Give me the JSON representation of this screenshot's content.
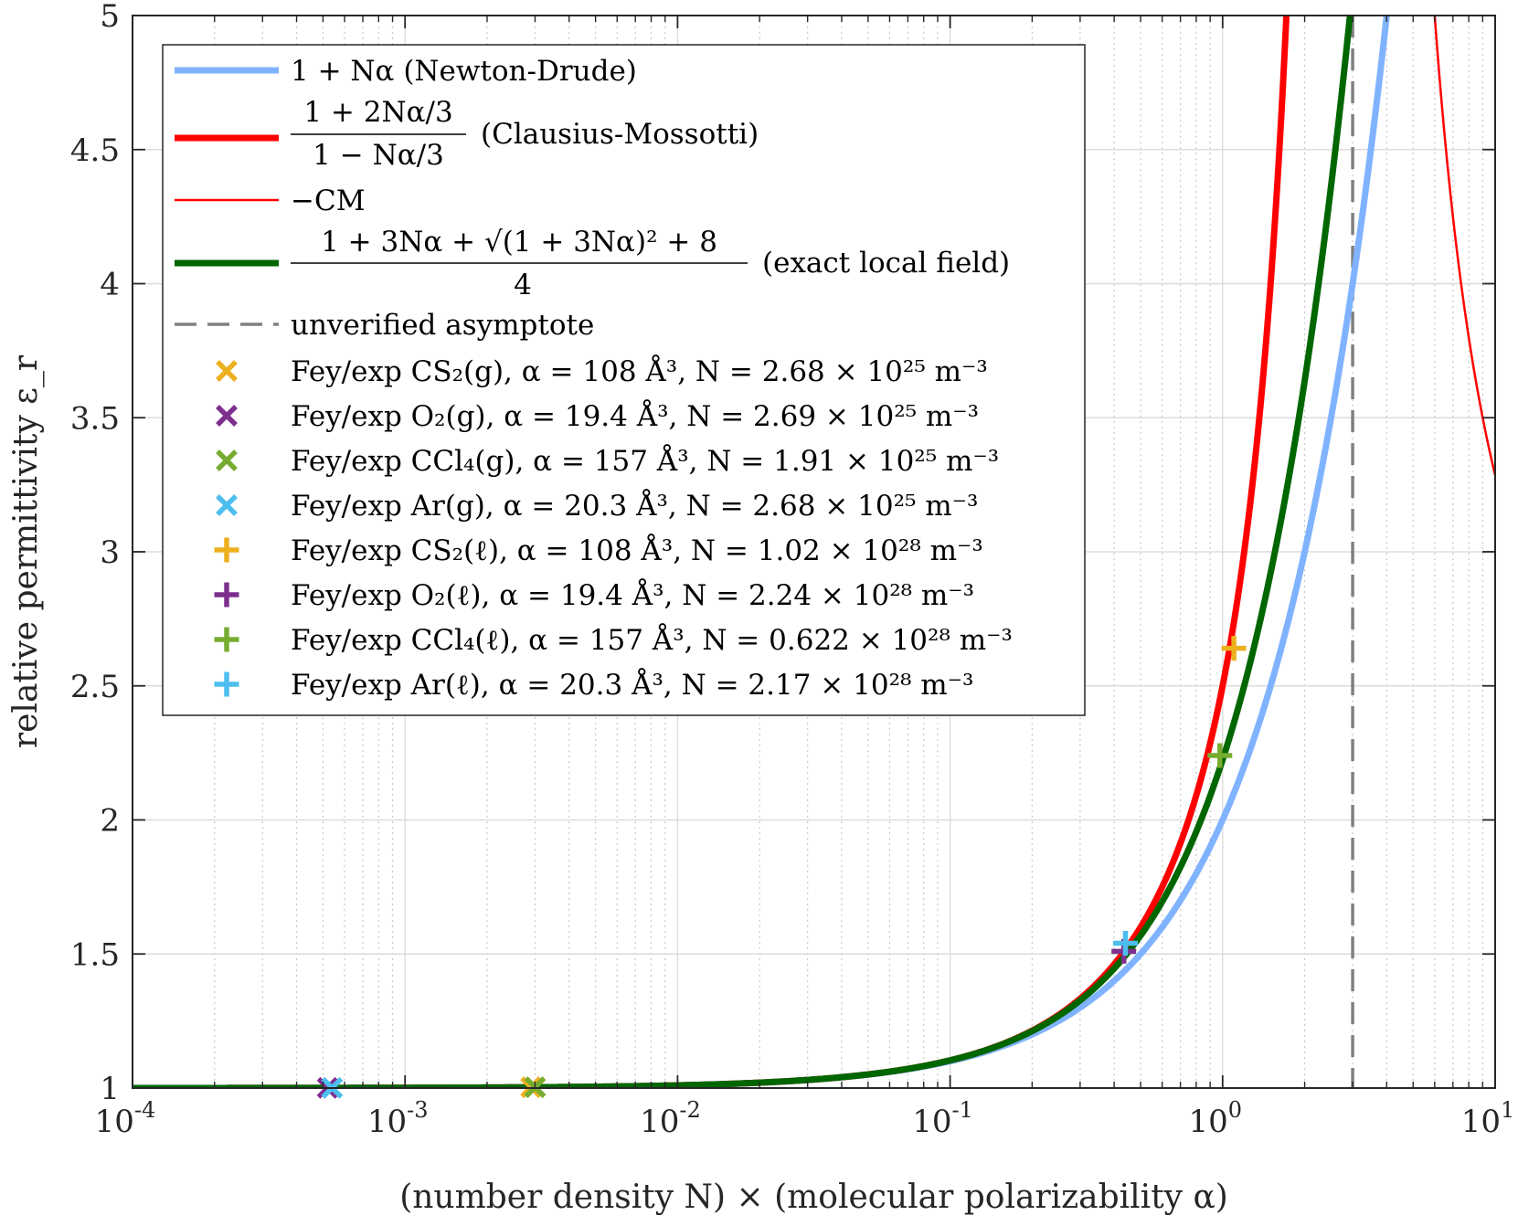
{
  "chart_data": {
    "type": "line",
    "title": "",
    "xlabel": "(number density N) × (molecular polarizability α)",
    "ylabel": "relative permittivity ε_r",
    "xscale": "log",
    "xlim": [
      0.0001,
      10
    ],
    "ylim": [
      1,
      5
    ],
    "grid": true,
    "legend_position": "top-left",
    "x_tick_labels": [
      "10^-4",
      "10^-3",
      "10^-2",
      "10^-1",
      "10^0",
      "10^1"
    ],
    "y_tick_labels": [
      "1",
      "1.5",
      "2",
      "2.5",
      "3",
      "3.5",
      "4",
      "4.5",
      "5"
    ],
    "series": [
      {
        "key": "nd",
        "name": "1 + Nα (Newton-Drude)",
        "color": "#80B3FF",
        "width": 7,
        "style": "solid"
      },
      {
        "key": "cm",
        "name": "(1 + 2Nα/3) / (1 − Nα/3) (Clausius-Mossotti)",
        "color": "#FF0000",
        "width": 7,
        "style": "solid"
      },
      {
        "key": "negcm",
        "name": "−CM",
        "color": "#FF0000",
        "width": 2.5,
        "style": "solid"
      },
      {
        "key": "exact",
        "name": "(1 + 3Nα + √((1 + 3Nα)² + 8)) / 4 (exact local field)",
        "color": "#006600",
        "width": 7,
        "style": "solid"
      },
      {
        "key": "asym",
        "name": "unverified asymptote",
        "color": "#808080",
        "width": 3.5,
        "style": "dashed",
        "x": 3
      }
    ],
    "points": [
      {
        "name": "Fey/exp CS₂(g), α = 108 Å³, N = 2.68 × 10²⁵ m⁻³",
        "marker": "x",
        "color": "#EDB120",
        "x": 0.0029,
        "y": 1.003
      },
      {
        "name": "Fey/exp O₂(g), α = 19.4 Å³, N = 2.69 × 10²⁵ m⁻³",
        "marker": "x",
        "color": "#7E2F8E",
        "x": 0.00052,
        "y": 1.0005
      },
      {
        "name": "Fey/exp CCl₄(g), α = 157 Å³, N = 1.91 × 10²⁵ m⁻³",
        "marker": "x",
        "color": "#77AC30",
        "x": 0.003,
        "y": 1.003
      },
      {
        "name": "Fey/exp Ar(g), α = 20.3 Å³, N = 2.68 × 10²⁵ m⁻³",
        "marker": "x",
        "color": "#4DBEEE",
        "x": 0.00054,
        "y": 1.0005
      },
      {
        "name": "Fey/exp CS₂(ℓ), α = 108 Å³, N = 1.02 × 10²⁸ m⁻³",
        "marker": "+",
        "color": "#EDB120",
        "x": 1.1,
        "y": 2.64
      },
      {
        "name": "Fey/exp O₂(ℓ), α = 19.4 Å³, N = 2.24 × 10²⁸ m⁻³",
        "marker": "+",
        "color": "#7E2F8E",
        "x": 0.434,
        "y": 1.51
      },
      {
        "name": "Fey/exp CCl₄(ℓ), α = 157 Å³, N = 0.622 × 10²⁸ m⁻³",
        "marker": "+",
        "color": "#77AC30",
        "x": 0.977,
        "y": 2.24
      },
      {
        "name": "Fey/exp Ar(ℓ), α = 20.3 Å³, N = 2.17 × 10²⁸ m⁻³",
        "marker": "+",
        "color": "#4DBEEE",
        "x": 0.44,
        "y": 1.54
      }
    ],
    "legend": {
      "nd_label": "1 + Nα (Newton-Drude)",
      "cm_numerator": "1 + 2Nα/3",
      "cm_denominator": "1 − Nα/3",
      "cm_suffix": "(Clausius-Mossotti)",
      "negcm_label": "−CM",
      "exact_numerator": "1 + 3Nα + √(1 + 3Nα)² + 8",
      "exact_denominator": "4",
      "exact_suffix": "(exact local field)",
      "asym_label": "unverified asymptote"
    }
  }
}
